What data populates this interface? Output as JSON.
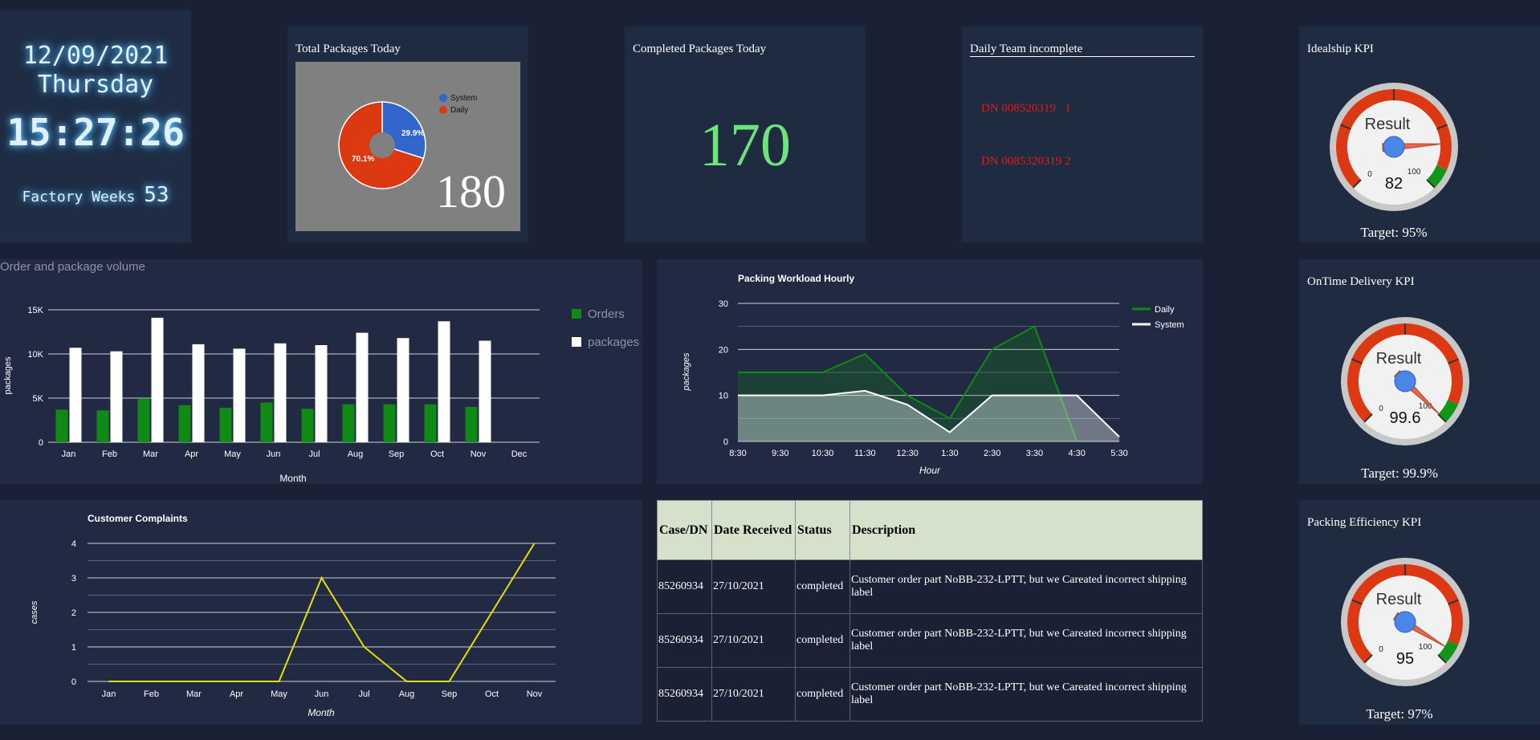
{
  "clock": {
    "date": "12/09/2021",
    "day": "Thursday",
    "time": "15:27:26",
    "weeks_label": "Factory Weeks",
    "weeks_value": "53"
  },
  "total_packages": {
    "title": "Total Packages Today",
    "value": "180",
    "chart_data": {
      "type": "pie",
      "title": "",
      "labels": [
        "System",
        "Daily"
      ],
      "values": [
        29.9,
        70.1
      ],
      "value_labels": [
        "29.9%",
        "70.1%"
      ],
      "colors": [
        "#3366cc",
        "#dc3912"
      ]
    }
  },
  "completed_packages": {
    "title": "Completed Packages Today",
    "value": "170"
  },
  "team_incomplete": {
    "title": "Daily Team incomplete",
    "items": [
      "DN 008520319   1",
      "DN 0085320319 2"
    ]
  },
  "order_volume": {
    "title": "Order and package volume",
    "chart_data": {
      "type": "bar",
      "categories": [
        "Jan",
        "Feb",
        "Mar",
        "Apr",
        "May",
        "Jun",
        "Jul",
        "Aug",
        "Sep",
        "Oct",
        "Nov",
        "Dec"
      ],
      "series": [
        {
          "name": "Orders",
          "color": "#0f8a14",
          "values": [
            3700,
            3600,
            4900,
            4200,
            3900,
            4500,
            3800,
            4300,
            4300,
            4300,
            4000,
            null
          ]
        },
        {
          "name": "packages",
          "color": "#ffffff",
          "values": [
            10700,
            10300,
            14100,
            11100,
            10600,
            11200,
            11000,
            12400,
            11800,
            13700,
            11500,
            null
          ]
        }
      ],
      "xlabel": "Month",
      "ylabel": "packages",
      "ylim": [
        0,
        15000
      ],
      "yticks": [
        0,
        5000,
        10000,
        15000
      ],
      "ytick_labels": [
        "0",
        "5K",
        "10K",
        "15K"
      ],
      "legend": "right"
    }
  },
  "packing_workload": {
    "chart_data": {
      "type": "area",
      "title": "Packing Workload Hourly",
      "categories": [
        "8:30",
        "9:30",
        "10:30",
        "11:30",
        "12:30",
        "1:30",
        "2:30",
        "3:30",
        "4:30",
        "5:30"
      ],
      "x": [
        0,
        1,
        2,
        3,
        4,
        5,
        6,
        7,
        8,
        9
      ],
      "series": [
        {
          "name": "Daily",
          "color": "#0f8a14",
          "x": [
            0,
            1,
            2,
            3,
            4,
            5,
            6,
            7,
            8
          ],
          "values": [
            15,
            15,
            15,
            19,
            10,
            5,
            20,
            25,
            0
          ]
        },
        {
          "name": "System",
          "color": "#ffffff",
          "x": [
            0,
            1,
            2,
            3,
            4,
            5,
            6,
            7,
            8,
            9
          ],
          "values": [
            10,
            10,
            10,
            11,
            8,
            2,
            10,
            10,
            10,
            1
          ]
        }
      ],
      "xlabel": "Hour",
      "ylabel": "packages",
      "ylim": [
        0,
        30
      ],
      "yticks": [
        0,
        10,
        20,
        30
      ],
      "legend": "top-right"
    }
  },
  "complaints": {
    "chart_data": {
      "type": "line",
      "title": "Customer Complaints",
      "categories": [
        "Jan",
        "Feb",
        "Mar",
        "Apr",
        "May",
        "Jun",
        "Jul",
        "Aug",
        "Sep",
        "Oct",
        "Nov"
      ],
      "values": [
        0,
        0,
        0,
        0,
        0,
        3,
        1,
        0,
        0,
        2,
        4
      ],
      "color": "#e8e000",
      "xlabel": "Month",
      "ylabel": "cases",
      "ylim": [
        0,
        4
      ],
      "yticks": [
        0,
        1,
        2,
        3,
        4
      ]
    }
  },
  "cases_table": {
    "headers": [
      "Case/DN",
      "Date Received",
      "Status",
      "Description"
    ],
    "rows": [
      [
        "85260934",
        "27/10/2021",
        "completed",
        "Customer order part NoBB-232-LPTT, but we Careated incorrect shipping label"
      ],
      [
        "85260934",
        "27/10/2021",
        "completed",
        "Customer order part NoBB-232-LPTT, but we Careated incorrect shipping label"
      ],
      [
        "85260934",
        "27/10/2021",
        "completed",
        "Customer order part NoBB-232-LPTT, but we Careated incorrect shipping label"
      ]
    ]
  },
  "kpis": [
    {
      "title": "Idealship KPI",
      "label": "Result",
      "value": 82,
      "value_text": "82",
      "min_label": "0",
      "max_label": "100",
      "target": "Target: 95%"
    },
    {
      "title": "OnTime Delivery KPI",
      "label": "Result",
      "value": 99.6,
      "value_text": "99.6",
      "min_label": "0",
      "max_label": "100",
      "target": "Target: 99.9%"
    },
    {
      "title": "Packing Efficiency KPI",
      "label": "Result",
      "value": 95,
      "value_text": "95",
      "min_label": "0",
      "max_label": "100",
      "target": "Target: 97%"
    }
  ]
}
